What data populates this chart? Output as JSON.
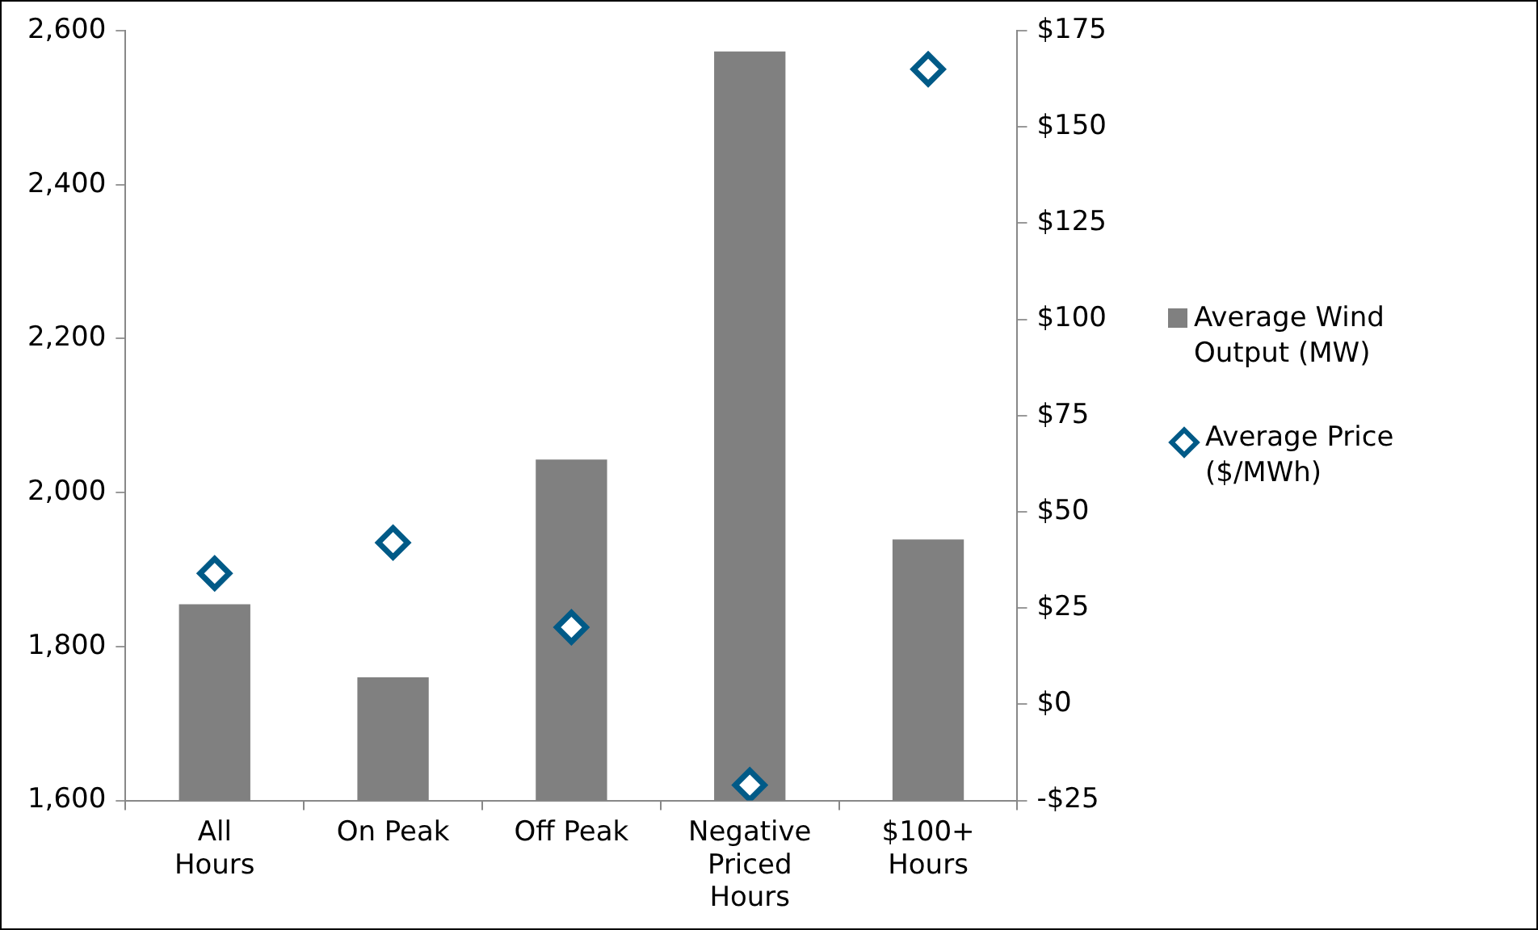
{
  "chart_data": {
    "type": "bar",
    "categories": [
      "All Hours",
      "On Peak",
      "Off Peak",
      "Negative Priced Hours",
      "$100+ Hours"
    ],
    "series": [
      {
        "name": "Average Wind Output (MW)",
        "color": "#808080",
        "values": [
          1855,
          1760,
          2043,
          2573,
          1939
        ]
      },
      {
        "name": "Average Price ($/MWh)",
        "type": "scatter",
        "axis": "y2",
        "marker": "diamond",
        "color": "#005a87",
        "values": [
          34,
          42,
          20,
          -21,
          165
        ]
      }
    ],
    "ylim": [
      1600,
      2600
    ],
    "yticks": [
      {
        "value": 1600,
        "label": "1,600"
      },
      {
        "value": 1800,
        "label": "1,800"
      },
      {
        "value": 2000,
        "label": "2,000"
      },
      {
        "value": 2200,
        "label": "2,200"
      },
      {
        "value": 2400,
        "label": "2,400"
      },
      {
        "value": 2600,
        "label": "2,600"
      }
    ],
    "y2lim": [
      -25,
      175
    ],
    "y2ticks": [
      {
        "value": -25,
        "label": "-$25"
      },
      {
        "value": 0,
        "label": "$0"
      },
      {
        "value": 25,
        "label": "$25"
      },
      {
        "value": 50,
        "label": "$50"
      },
      {
        "value": 75,
        "label": "$75"
      },
      {
        "value": 100,
        "label": "$100"
      },
      {
        "value": 125,
        "label": "$125"
      },
      {
        "value": 150,
        "label": "$150"
      },
      {
        "value": 175,
        "label": "$175"
      }
    ],
    "grid": false,
    "legend": "right"
  }
}
